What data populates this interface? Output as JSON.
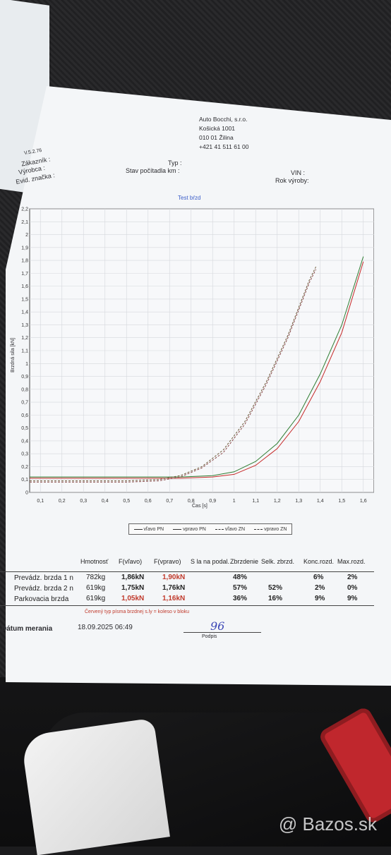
{
  "header": {
    "company_name": "Auto Bocchi, s.r.o.",
    "company_street": "Košická 1001",
    "company_city": "010 01 Žilina",
    "company_phone": "+421 41 511 61 00",
    "top_left_small": "V.5.2.76",
    "customer_label": "Zákazník :",
    "manufacturer_label": "Výrobca :",
    "plate_label": "Evid. značka :",
    "type_label": "Typ :",
    "odometer_label": "Stav počítadla km :",
    "vin_label": "VIN :",
    "year_label": "Rok výroby:"
  },
  "chart_data": {
    "type": "line",
    "title": "Test bŕzd",
    "xlabel": "Čas [s]",
    "ylabel": "Brzdná sila [kN]",
    "xlim": [
      0.05,
      1.65
    ],
    "ylim": [
      0,
      2.2
    ],
    "xticks": [
      "0,1",
      "0,2",
      "0,3",
      "0,4",
      "0,5",
      "0,6",
      "0,7",
      "0,8",
      "0,9",
      "1",
      "1,1",
      "1,2",
      "1,3",
      "1,4",
      "1,5",
      "1,6"
    ],
    "yticks": [
      "0",
      "0,1",
      "0,2",
      "0,3",
      "0,4",
      "0,5",
      "0,6",
      "0,7",
      "0,8",
      "0,9",
      "1",
      "1,1",
      "1,2",
      "1,3",
      "1,4",
      "1,5",
      "1,6",
      "1,7",
      "1,8",
      "1,9",
      "2",
      "2,1",
      "2,2"
    ],
    "grid": true,
    "legend_position": "bottom",
    "series": [
      {
        "name": "vľavo PN",
        "style": "solid",
        "color": "#2e7d32",
        "x": [
          0.05,
          0.3,
          0.6,
          0.75,
          0.9,
          1.0,
          1.1,
          1.2,
          1.3,
          1.4,
          1.5,
          1.6
        ],
        "y": [
          0.12,
          0.12,
          0.12,
          0.12,
          0.13,
          0.16,
          0.24,
          0.38,
          0.6,
          0.92,
          1.3,
          1.83
        ]
      },
      {
        "name": "vpravo PN",
        "style": "solid",
        "color": "#c62828",
        "x": [
          0.05,
          0.3,
          0.6,
          0.75,
          0.9,
          1.0,
          1.1,
          1.2,
          1.3,
          1.4,
          1.5,
          1.6
        ],
        "y": [
          0.11,
          0.11,
          0.11,
          0.11,
          0.12,
          0.14,
          0.21,
          0.34,
          0.55,
          0.86,
          1.24,
          1.79
        ]
      },
      {
        "name": "vľavo ZN",
        "style": "dashed",
        "color": "#6d5a3a",
        "x": [
          0.05,
          0.3,
          0.5,
          0.65,
          0.75,
          0.85,
          0.95,
          1.05,
          1.15,
          1.25,
          1.35,
          1.38
        ],
        "y": [
          0.09,
          0.09,
          0.09,
          0.1,
          0.13,
          0.2,
          0.33,
          0.55,
          0.86,
          1.22,
          1.65,
          1.75
        ]
      },
      {
        "name": "vpravo ZN",
        "style": "dashed",
        "color": "#8a4a4a",
        "x": [
          0.05,
          0.3,
          0.5,
          0.65,
          0.75,
          0.85,
          0.95,
          1.05,
          1.15,
          1.25,
          1.35,
          1.38
        ],
        "y": [
          0.08,
          0.08,
          0.08,
          0.09,
          0.12,
          0.19,
          0.31,
          0.53,
          0.84,
          1.2,
          1.63,
          1.73
        ]
      }
    ]
  },
  "table": {
    "headers": [
      "Hmotnosť",
      "F(vľavo)",
      "F(vpravo)",
      "S la na podal.",
      "Zbrzdenie",
      "Selk. zbrzd.",
      "Konc.rozd.",
      "Max.rozd."
    ],
    "rows": [
      {
        "label": "Prevádz. brzda 1 n",
        "mass": "782kg",
        "f_left": "1,86kN",
        "f_right": "1,90kN",
        "braking": "48%",
        "selk": "",
        "konc": "6%",
        "max": "2%"
      },
      {
        "label": "Prevádz. brzda 2 n",
        "mass": "619kg",
        "f_left": "1,75kN",
        "f_right": "1,76kN",
        "braking": "57%",
        "selk": "52%",
        "konc": "2%",
        "max": "0%"
      },
      {
        "label": "Parkovacia brzda",
        "mass": "619kg",
        "f_left": "1,05kN",
        "f_right": "1,16kN",
        "braking": "36%",
        "selk": "16%",
        "konc": "9%",
        "max": "9%"
      }
    ],
    "note": "Červený typ písma brzdnej s.ly = koleso v bloku"
  },
  "footer": {
    "date_label": "Dátum merania",
    "date_value": "18.09.2025 06:49",
    "signature_mark": "96",
    "signature_label": "Podpis"
  },
  "watermark": "@ Bazos.sk"
}
